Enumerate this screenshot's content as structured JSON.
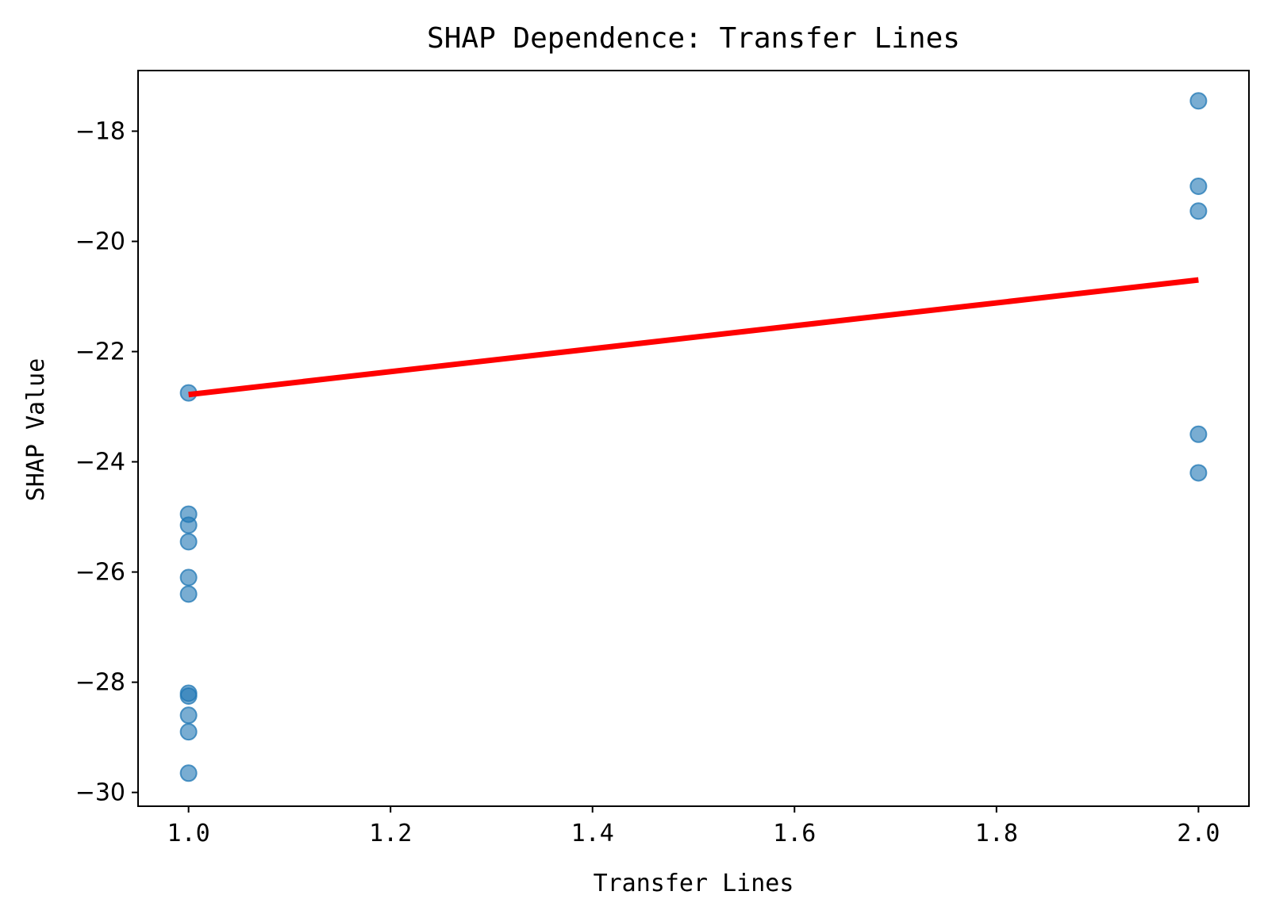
{
  "chart_data": {
    "type": "scatter",
    "title": "SHAP Dependence: Transfer Lines",
    "xlabel": "Transfer Lines",
    "ylabel": "SHAP Value",
    "xlim": [
      0.95,
      2.05
    ],
    "ylim": [
      -30.25,
      -16.9
    ],
    "grid": false,
    "x_ticks": [
      1.0,
      1.2,
      1.4,
      1.6,
      1.8,
      2.0
    ],
    "x_tick_labels": [
      "1.0",
      "1.2",
      "1.4",
      "1.6",
      "1.8",
      "2.0"
    ],
    "y_ticks": [
      -30,
      -28,
      -26,
      -24,
      -22,
      -20,
      -18
    ],
    "y_tick_labels": [
      "−30",
      "−28",
      "−26",
      "−24",
      "−22",
      "−20",
      "−18"
    ],
    "series": [
      {
        "type": "scatter",
        "color": "#1f77b4",
        "opacity": 0.6,
        "points": [
          {
            "x": 1.0,
            "y": -22.75
          },
          {
            "x": 1.0,
            "y": -24.95
          },
          {
            "x": 1.0,
            "y": -25.15
          },
          {
            "x": 1.0,
            "y": -25.45
          },
          {
            "x": 1.0,
            "y": -26.1
          },
          {
            "x": 1.0,
            "y": -26.4
          },
          {
            "x": 1.0,
            "y": -28.2
          },
          {
            "x": 1.0,
            "y": -28.25
          },
          {
            "x": 1.0,
            "y": -28.6
          },
          {
            "x": 1.0,
            "y": -28.9
          },
          {
            "x": 1.0,
            "y": -29.65
          },
          {
            "x": 2.0,
            "y": -17.45
          },
          {
            "x": 2.0,
            "y": -19.0
          },
          {
            "x": 2.0,
            "y": -19.45
          },
          {
            "x": 2.0,
            "y": -23.5
          },
          {
            "x": 2.0,
            "y": -24.2
          }
        ]
      },
      {
        "type": "line",
        "color": "#ff0000",
        "points": [
          {
            "x": 1.0,
            "y": -22.78
          },
          {
            "x": 2.0,
            "y": -20.7
          }
        ]
      }
    ]
  }
}
